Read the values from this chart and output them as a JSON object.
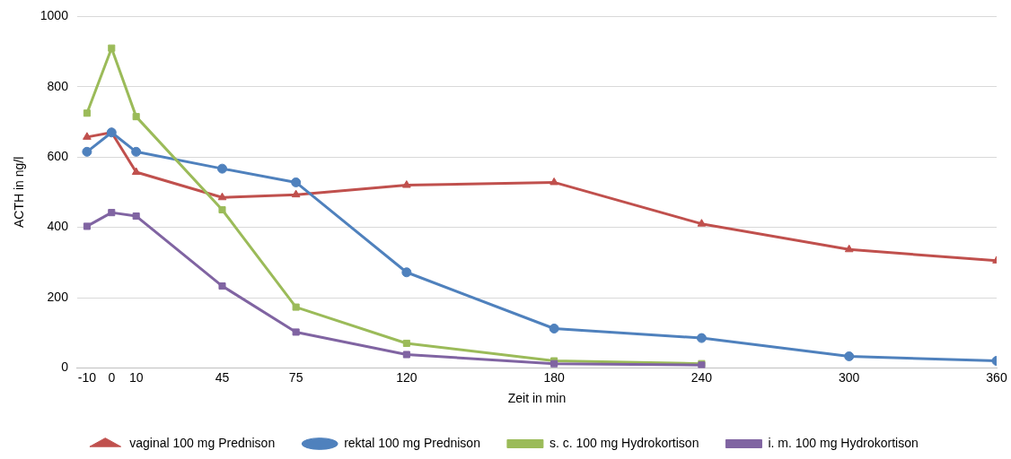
{
  "chart_data": {
    "type": "line",
    "xlabel": "Zeit in min",
    "ylabel": "ACTH in ng/l",
    "x": [
      -10,
      0,
      10,
      45,
      75,
      120,
      180,
      240,
      300,
      360
    ],
    "xlim": [
      -14,
      360
    ],
    "xticks": [
      -10,
      0,
      10,
      45,
      75,
      120,
      180,
      240,
      300,
      360
    ],
    "ylim": [
      0,
      1000
    ],
    "yticks": [
      0,
      200,
      400,
      600,
      800,
      1000
    ],
    "grid": "y",
    "legend": "bottom",
    "line_style": "solid",
    "series": [
      {
        "name": "vaginal 100 mg Prednison",
        "color": "#c0504d",
        "marker": "triangle",
        "values": [
          657,
          670,
          557,
          485,
          493,
          520,
          528,
          410,
          337,
          305
        ]
      },
      {
        "name": "rektal 100 mg Prednison",
        "color": "#4f81bd",
        "marker": "circle",
        "values": [
          615,
          670,
          615,
          567,
          528,
          272,
          112,
          85,
          33,
          20
        ]
      },
      {
        "name": "s. c. 100 mg Hydrokortison",
        "color": "#9bbb59",
        "marker": "square",
        "values": [
          725,
          910,
          715,
          450,
          173,
          70,
          20,
          12,
          null,
          null
        ]
      },
      {
        "name": "i. m. 100 mg Hydrokortison",
        "color": "#8064a2",
        "marker": "square",
        "values": [
          403,
          442,
          432,
          233,
          102,
          38,
          12,
          8,
          null,
          null
        ]
      }
    ]
  }
}
